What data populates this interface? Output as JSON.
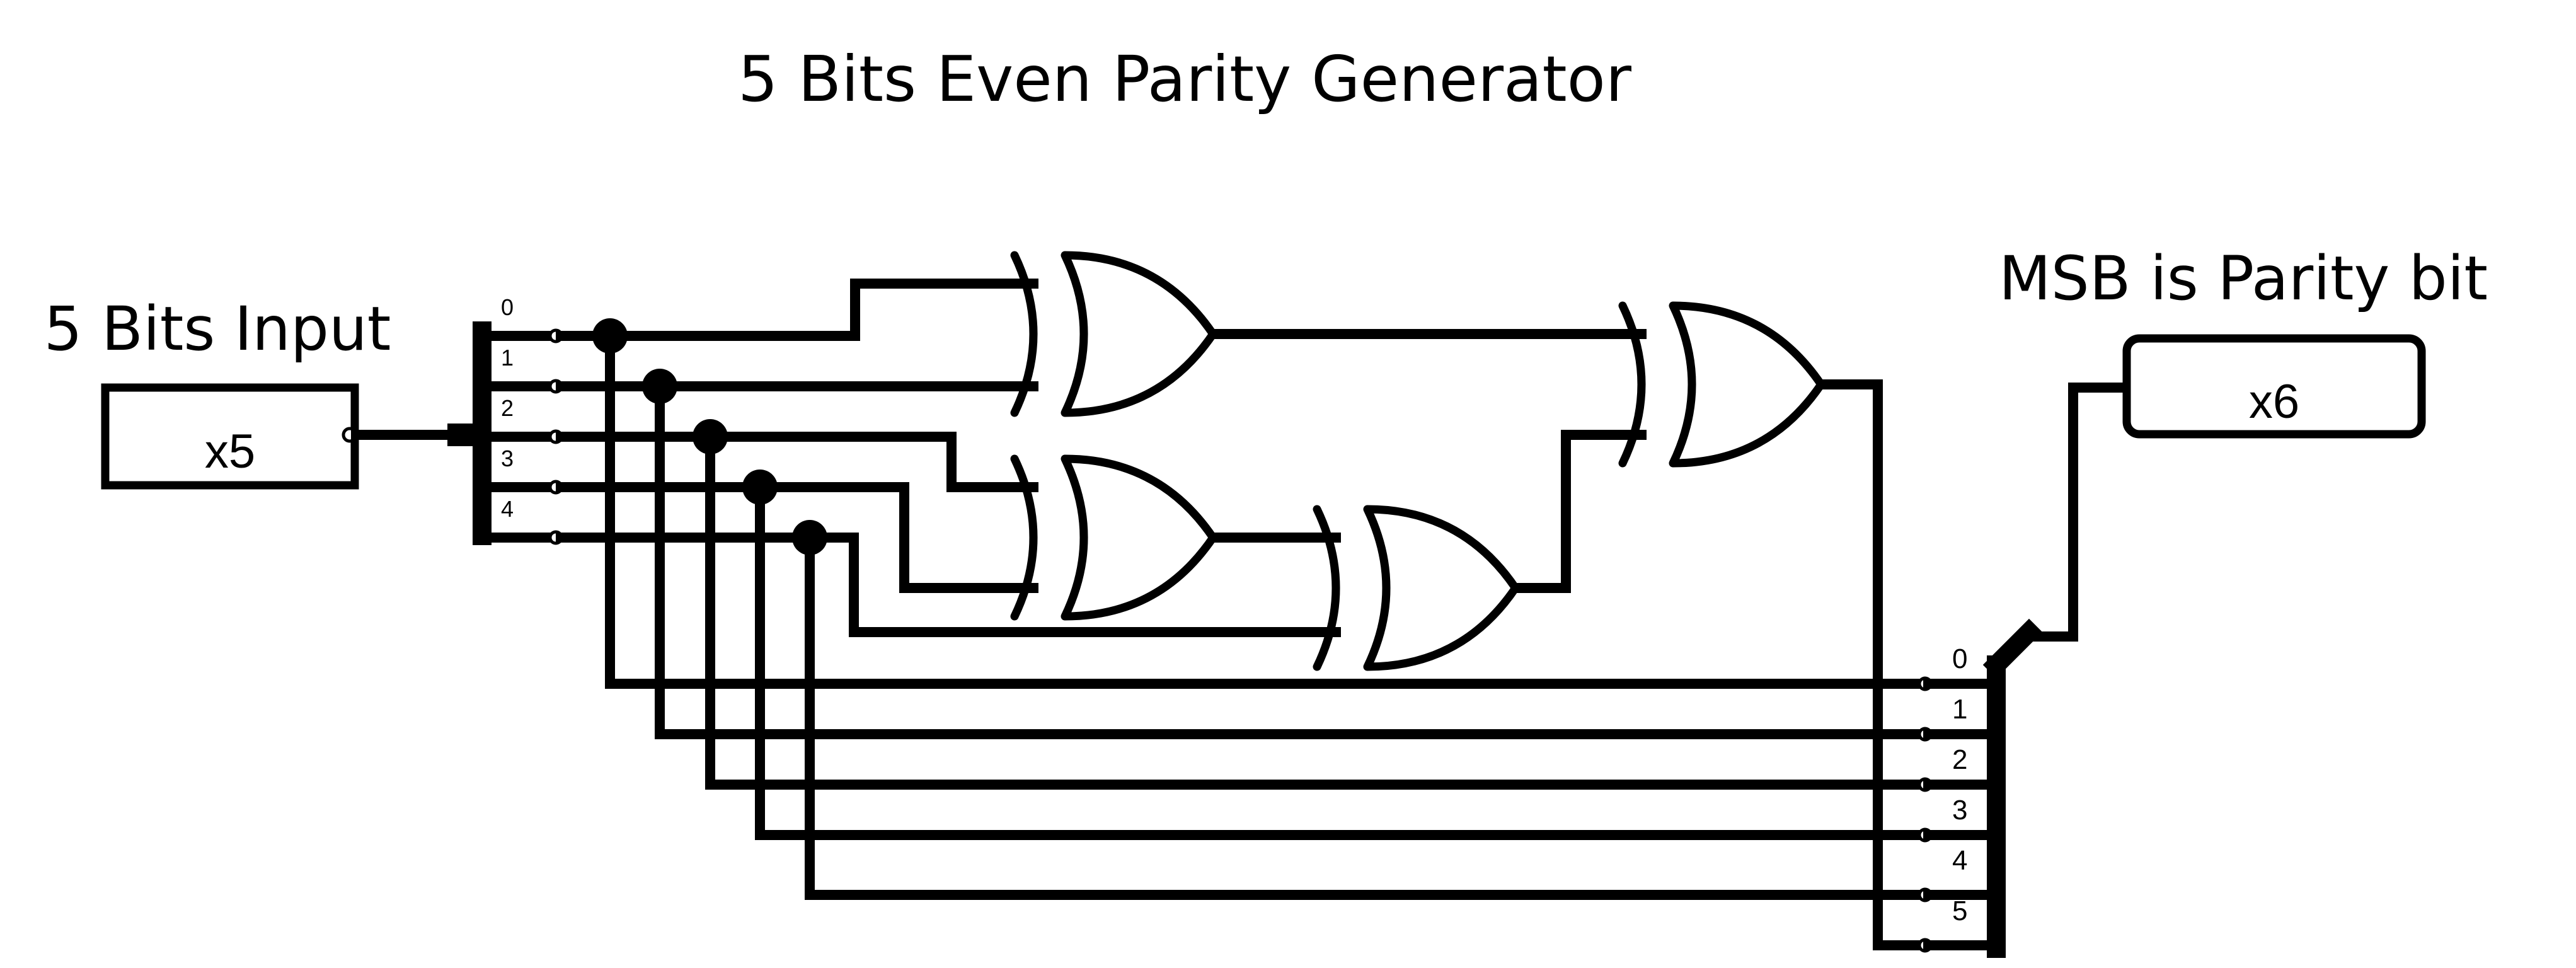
{
  "title": "5 Bits Even Parity Generator",
  "input": {
    "caption": "5 Bits Input",
    "value": "x5",
    "bits": [
      "0",
      "1",
      "2",
      "3",
      "4"
    ]
  },
  "output": {
    "caption": "MSB is Parity bit",
    "value": "x6",
    "bits": [
      "0",
      "1",
      "2",
      "3",
      "4",
      "5"
    ]
  },
  "gates": [
    {
      "id": "xor-1",
      "type": "XOR",
      "inputs": [
        "bit-0",
        "bit-1"
      ]
    },
    {
      "id": "xor-2",
      "type": "XOR",
      "inputs": [
        "bit-2",
        "bit-3"
      ]
    },
    {
      "id": "xor-3",
      "type": "XOR",
      "inputs": [
        "xor-2",
        "bit-4"
      ]
    },
    {
      "id": "xor-4",
      "type": "XOR",
      "inputs": [
        "xor-1",
        "xor-3"
      ]
    }
  ]
}
